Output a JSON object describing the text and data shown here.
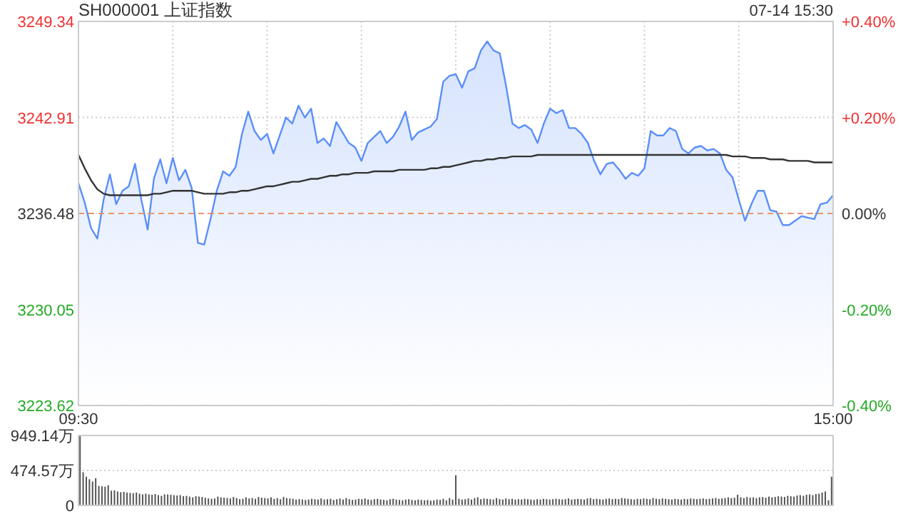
{
  "chart_data": [
    {
      "type": "line",
      "title": "SH000001 上证指数",
      "annotations": [
        "07-14 15:30"
      ],
      "categories": [
        "09:30",
        null,
        null,
        null,
        null,
        null,
        null,
        null,
        null,
        null,
        null,
        null,
        null,
        null,
        null,
        null,
        null,
        null,
        null,
        null,
        null,
        null,
        null,
        null,
        null,
        null,
        null,
        null,
        null,
        null,
        null,
        null,
        null,
        null,
        null,
        null,
        null,
        null,
        null,
        null,
        null,
        null,
        null,
        null,
        null,
        null,
        null,
        null,
        null,
        null,
        null,
        null,
        null,
        null,
        null,
        null,
        null,
        null,
        null,
        null,
        null,
        null,
        null,
        null,
        null,
        null,
        null,
        null,
        null,
        null,
        null,
        null,
        null,
        null,
        null,
        null,
        null,
        null,
        null,
        null,
        null,
        null,
        null,
        null,
        null,
        null,
        null,
        null,
        null,
        null,
        null,
        null,
        null,
        null,
        null,
        null,
        null,
        null,
        null,
        null,
        null,
        null,
        null,
        null,
        null,
        null,
        null,
        null,
        null,
        null,
        null,
        null,
        null,
        null,
        null,
        null,
        null,
        null,
        null,
        null,
        "15:00"
      ],
      "ylim": [
        3223.62,
        3249.34
      ],
      "yticks": [
        3223.62,
        3230.05,
        3236.48,
        3242.91,
        3249.34
      ],
      "y2lim": [
        -0.4,
        0.4
      ],
      "y2ticks": [
        {
          "value": -0.4,
          "label": "-0.40%"
        },
        {
          "value": -0.2,
          "label": "-0.20%"
        },
        {
          "value": 0,
          "label": "0.00%"
        },
        {
          "value": 0.2,
          "label": "+0.20%"
        },
        {
          "value": 0.4,
          "label": "+0.40%"
        }
      ],
      "grid": true,
      "ref_lines": [
        {
          "axis": "y",
          "value": 3236.48,
          "color": "#e8956b",
          "line_style": "dashed"
        }
      ],
      "series": [
        {
          "type": "area",
          "color": "#5b8ff9",
          "values": [
            3238.5,
            3237.2,
            3235.5,
            3234.8,
            3237.4,
            3239.1,
            3237.1,
            3238.0,
            3238.3,
            3239.8,
            3237.4,
            3235.4,
            3238.8,
            3240.1,
            3238.5,
            3240.2,
            3238.7,
            3239.4,
            3238.2,
            3234.5,
            3234.4,
            3236.1,
            3238.0,
            3239.3,
            3239.0,
            3239.6,
            3241.8,
            3243.3,
            3242.0,
            3241.4,
            3241.8,
            3240.5,
            3241.7,
            3242.9,
            3242.5,
            3243.7,
            3242.9,
            3243.5,
            3241.2,
            3241.5,
            3241.0,
            3242.6,
            3241.9,
            3241.2,
            3240.9,
            3240.0,
            3241.2,
            3241.6,
            3242.0,
            3241.2,
            3241.6,
            3242.3,
            3243.3,
            3241.4,
            3241.9,
            3242.1,
            3242.3,
            3242.8,
            3245.3,
            3245.7,
            3245.8,
            3244.9,
            3246.0,
            3246.2,
            3247.4,
            3248.0,
            3247.4,
            3247.2,
            3245.0,
            3242.5,
            3242.2,
            3242.4,
            3242.1,
            3241.2,
            3242.5,
            3243.5,
            3243.2,
            3243.4,
            3242.2,
            3242.2,
            3241.8,
            3241.2,
            3240.0,
            3239.1,
            3239.8,
            3239.9,
            3239.4,
            3238.8,
            3239.2,
            3239.0,
            3239.5,
            3242.0,
            3241.7,
            3241.7,
            3242.2,
            3242.0,
            3240.8,
            3240.5,
            3240.9,
            3241.0,
            3240.7,
            3240.8,
            3240.5,
            3239.4,
            3238.9,
            3237.4,
            3236.0,
            3237.1,
            3238.0,
            3238.0,
            3236.7,
            3236.6,
            3235.7,
            3235.7,
            3236.0,
            3236.3,
            3236.2,
            3236.1,
            3237.1,
            3237.2,
            3237.7
          ]
        },
        {
          "type": "line",
          "color": "#333333",
          "values": [
            3240.4,
            3239.5,
            3238.7,
            3238.1,
            3237.8,
            3237.7,
            3237.7,
            3237.7,
            3237.7,
            3237.7,
            3237.7,
            3237.7,
            3237.8,
            3237.8,
            3237.9,
            3238.0,
            3238.0,
            3238.0,
            3238.0,
            3237.9,
            3237.8,
            3237.8,
            3237.8,
            3237.8,
            3237.9,
            3237.9,
            3238.0,
            3238.0,
            3238.1,
            3238.2,
            3238.3,
            3238.3,
            3238.4,
            3238.5,
            3238.6,
            3238.6,
            3238.7,
            3238.8,
            3238.8,
            3238.9,
            3239.0,
            3239.0,
            3239.1,
            3239.1,
            3239.2,
            3239.2,
            3239.2,
            3239.3,
            3239.3,
            3239.3,
            3239.3,
            3239.4,
            3239.4,
            3239.4,
            3239.4,
            3239.4,
            3239.5,
            3239.5,
            3239.6,
            3239.6,
            3239.7,
            3239.8,
            3239.9,
            3240.0,
            3240.0,
            3240.1,
            3240.1,
            3240.2,
            3240.2,
            3240.3,
            3240.3,
            3240.3,
            3240.3,
            3240.4,
            3240.4,
            3240.4,
            3240.4,
            3240.4,
            3240.4,
            3240.4,
            3240.4,
            3240.4,
            3240.4,
            3240.4,
            3240.4,
            3240.4,
            3240.4,
            3240.4,
            3240.4,
            3240.4,
            3240.4,
            3240.4,
            3240.4,
            3240.4,
            3240.4,
            3240.4,
            3240.4,
            3240.4,
            3240.4,
            3240.4,
            3240.4,
            3240.4,
            3240.4,
            3240.4,
            3240.3,
            3240.3,
            3240.3,
            3240.2,
            3240.2,
            3240.2,
            3240.1,
            3240.1,
            3240.1,
            3240.0,
            3240.0,
            3240.0,
            3240.0,
            3239.9,
            3239.9,
            3239.9,
            3239.9
          ]
        }
      ]
    },
    {
      "type": "bar",
      "tick_labels": "y",
      "grid": "y",
      "color": "#555555",
      "ylim": [
        0,
        949.14
      ],
      "yticks": [
        0,
        {
          "value": 474.57,
          "label": "474.57万"
        },
        {
          "value": 949.14,
          "label": "949.14万"
        }
      ],
      "categories": [
        null,
        null,
        null,
        null,
        null,
        null,
        null,
        null,
        null,
        null,
        null,
        null,
        null,
        null,
        null,
        null,
        null,
        null,
        null,
        null,
        null,
        null,
        null,
        null,
        null,
        null,
        null,
        null,
        null,
        null,
        null,
        null,
        null,
        null,
        null,
        null,
        null,
        null,
        null,
        null,
        null,
        null,
        null,
        null,
        null,
        null,
        null,
        null,
        null,
        null,
        null,
        null,
        null,
        null,
        null,
        null,
        null,
        null,
        null,
        null,
        null,
        null,
        null,
        null,
        null,
        null,
        null,
        null,
        null,
        null,
        null,
        null,
        null,
        null,
        null,
        null,
        null,
        null,
        null,
        null,
        null,
        null,
        null,
        null,
        null,
        null,
        null,
        null,
        null,
        null,
        null,
        null,
        null,
        null,
        null,
        null,
        null,
        null,
        null,
        null,
        null,
        null,
        null,
        null,
        null,
        null,
        null,
        null,
        null,
        null,
        null,
        null,
        null,
        null,
        null,
        null,
        null,
        null,
        null,
        null,
        null,
        null,
        null,
        null,
        null,
        null,
        null,
        null,
        null,
        null,
        null,
        null,
        null,
        null,
        null,
        null,
        null,
        null,
        null,
        null,
        null,
        null,
        null,
        null,
        null,
        null,
        null,
        null,
        null,
        null,
        null,
        null,
        null,
        null,
        null,
        null,
        null,
        null,
        null,
        null,
        null,
        null,
        null,
        null,
        null,
        null,
        null,
        null,
        null,
        null,
        null,
        null,
        null,
        null,
        null,
        null,
        null,
        null,
        null,
        null,
        null,
        null,
        null,
        null,
        null,
        null,
        null,
        null,
        null,
        null,
        null,
        null,
        null,
        null,
        null,
        null,
        null,
        null,
        null,
        null,
        null,
        null,
        null,
        null,
        null,
        null,
        null,
        null,
        null,
        null,
        null,
        null,
        null,
        null,
        null,
        null,
        null,
        null,
        null,
        null,
        null,
        null,
        null,
        null,
        null,
        null,
        null,
        null,
        null,
        null,
        null,
        null,
        null,
        null,
        null,
        null,
        null,
        null,
        null,
        null,
        null
      ],
      "values": [
        945,
        450,
        390,
        355,
        325,
        370,
        265,
        260,
        255,
        275,
        200,
        205,
        190,
        180,
        185,
        175,
        170,
        165,
        175,
        160,
        150,
        160,
        150,
        145,
        155,
        140,
        130,
        150,
        150,
        145,
        140,
        135,
        140,
        125,
        130,
        120,
        110,
        125,
        120,
        115,
        105,
        95,
        90,
        95,
        120,
        110,
        105,
        100,
        95,
        115,
        100,
        85,
        90,
        110,
        95,
        100,
        90,
        115,
        105,
        100,
        95,
        110,
        90,
        100,
        85,
        115,
        100,
        95,
        90,
        80,
        85,
        80,
        75,
        80,
        90,
        85,
        80,
        95,
        80,
        85,
        90,
        75,
        85,
        95,
        80,
        100,
        85,
        75,
        80,
        90,
        85,
        95,
        80,
        75,
        85,
        90,
        80,
        75,
        70,
        85,
        90,
        80,
        75,
        70,
        80,
        85,
        75,
        70,
        80,
        75,
        70,
        75,
        65,
        70,
        80,
        75,
        90,
        70,
        100,
        80,
        410,
        90,
        80,
        85,
        95,
        80,
        100,
        110,
        85,
        95,
        90,
        85,
        80,
        100,
        85,
        80,
        95,
        85,
        90,
        80,
        85,
        80,
        90,
        85,
        80,
        75,
        85,
        80,
        90,
        85,
        80,
        85,
        90,
        85,
        80,
        85,
        95,
        80,
        85,
        90,
        85,
        80,
        95,
        100,
        85,
        90,
        85,
        80,
        90,
        95,
        85,
        90,
        85,
        100,
        95,
        90,
        85,
        80,
        90,
        85,
        95,
        90,
        85,
        100,
        90,
        85,
        95,
        90,
        85,
        80,
        90,
        85,
        80,
        90,
        85,
        95,
        90,
        85,
        90,
        95,
        85,
        90,
        95,
        100,
        90,
        95,
        100,
        110,
        100,
        105,
        145,
        110,
        100,
        115,
        105,
        110,
        100,
        110,
        115,
        105,
        120,
        110,
        115,
        125,
        120,
        115,
        130,
        125,
        120,
        135,
        140,
        130,
        145,
        150,
        140,
        155,
        160,
        175,
        190,
        70,
        390
      ]
    }
  ]
}
